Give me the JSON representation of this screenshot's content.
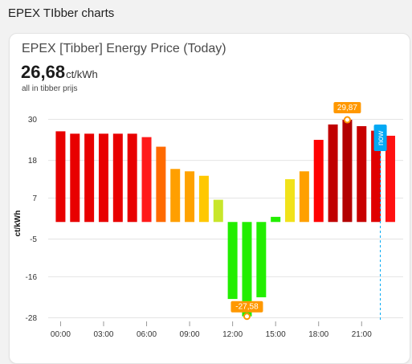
{
  "section": {
    "title": "EPEX TIbber charts"
  },
  "card": {
    "title": "EPEX [Tibber] Energy Price (Today)",
    "current_value": "26,68",
    "unit": "ct/kWh",
    "subtitle": "all in tibber prijs"
  },
  "chart_data": {
    "type": "bar",
    "ylabel": "ct/kWh",
    "y_ticks": [
      "30",
      "18",
      "7",
      "-5",
      "-16",
      "-28"
    ],
    "y_tick_values": [
      30,
      18,
      7,
      -5,
      -16,
      -28
    ],
    "x_ticks": [
      "00:00",
      "03:00",
      "06:00",
      "09:00",
      "12:00",
      "15:00",
      "18:00",
      "21:00"
    ],
    "x_tick_hours": [
      0,
      3,
      6,
      9,
      12,
      15,
      18,
      21
    ],
    "ylim": [
      -28,
      30
    ],
    "hours": [
      0,
      1,
      2,
      3,
      4,
      5,
      6,
      7,
      8,
      9,
      10,
      11,
      12,
      13,
      14,
      15,
      16,
      17,
      18,
      19,
      20,
      21,
      22,
      23
    ],
    "values": [
      26.5,
      25.8,
      25.8,
      25.8,
      25.8,
      25.8,
      24.8,
      22.0,
      15.5,
      14.8,
      13.5,
      6.5,
      -22.5,
      -27.58,
      -22.0,
      1.5,
      12.5,
      14.8,
      24.0,
      28.5,
      29.87,
      28.0,
      26.68,
      25.2
    ],
    "colors": [
      "#e80000",
      "#e80000",
      "#e80000",
      "#e80000",
      "#e80000",
      "#e80000",
      "#ff1a1a",
      "#ff6a00",
      "#ff9f00",
      "#ffa200",
      "#ffc800",
      "#c8e62a",
      "#22ee00",
      "#22ee00",
      "#22ee00",
      "#22ee00",
      "#f1e21a",
      "#ffa000",
      "#ff0000",
      "#c00000",
      "#b30000",
      "#c80000",
      "#e00000",
      "#ff1111"
    ],
    "max_label": "29,87",
    "min_label": "-27,58",
    "now_label": "now",
    "grid": "horizontal",
    "label_color": "#ff9800",
    "now_color": "#03a9f4"
  }
}
